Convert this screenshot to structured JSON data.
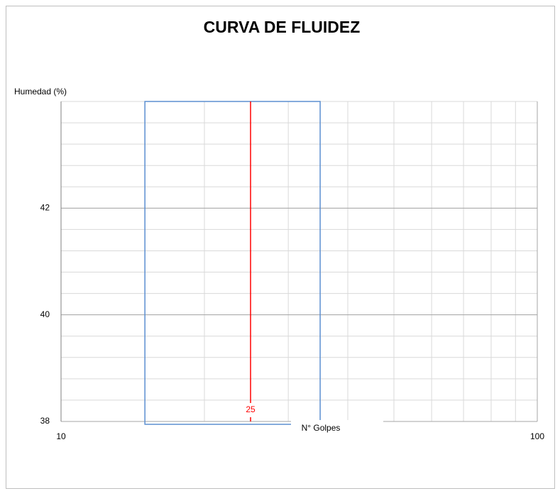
{
  "chart_data": {
    "type": "line",
    "title": "CURVA DE FLUIDEZ",
    "y_label": "Humedad (%)",
    "x_label": "N° Golpes",
    "xscale": "log",
    "xlim": [
      10,
      100
    ],
    "xticks": [
      10,
      100
    ],
    "ylim": [
      38,
      44
    ],
    "yticks": [
      38,
      40,
      42
    ],
    "grid": true,
    "highlight": {
      "xrange": [
        15,
        35
      ],
      "yrange": [
        38,
        44
      ],
      "color": "#5b8fd1"
    },
    "reference_line": {
      "x": 25,
      "color": "#ff0000"
    }
  }
}
